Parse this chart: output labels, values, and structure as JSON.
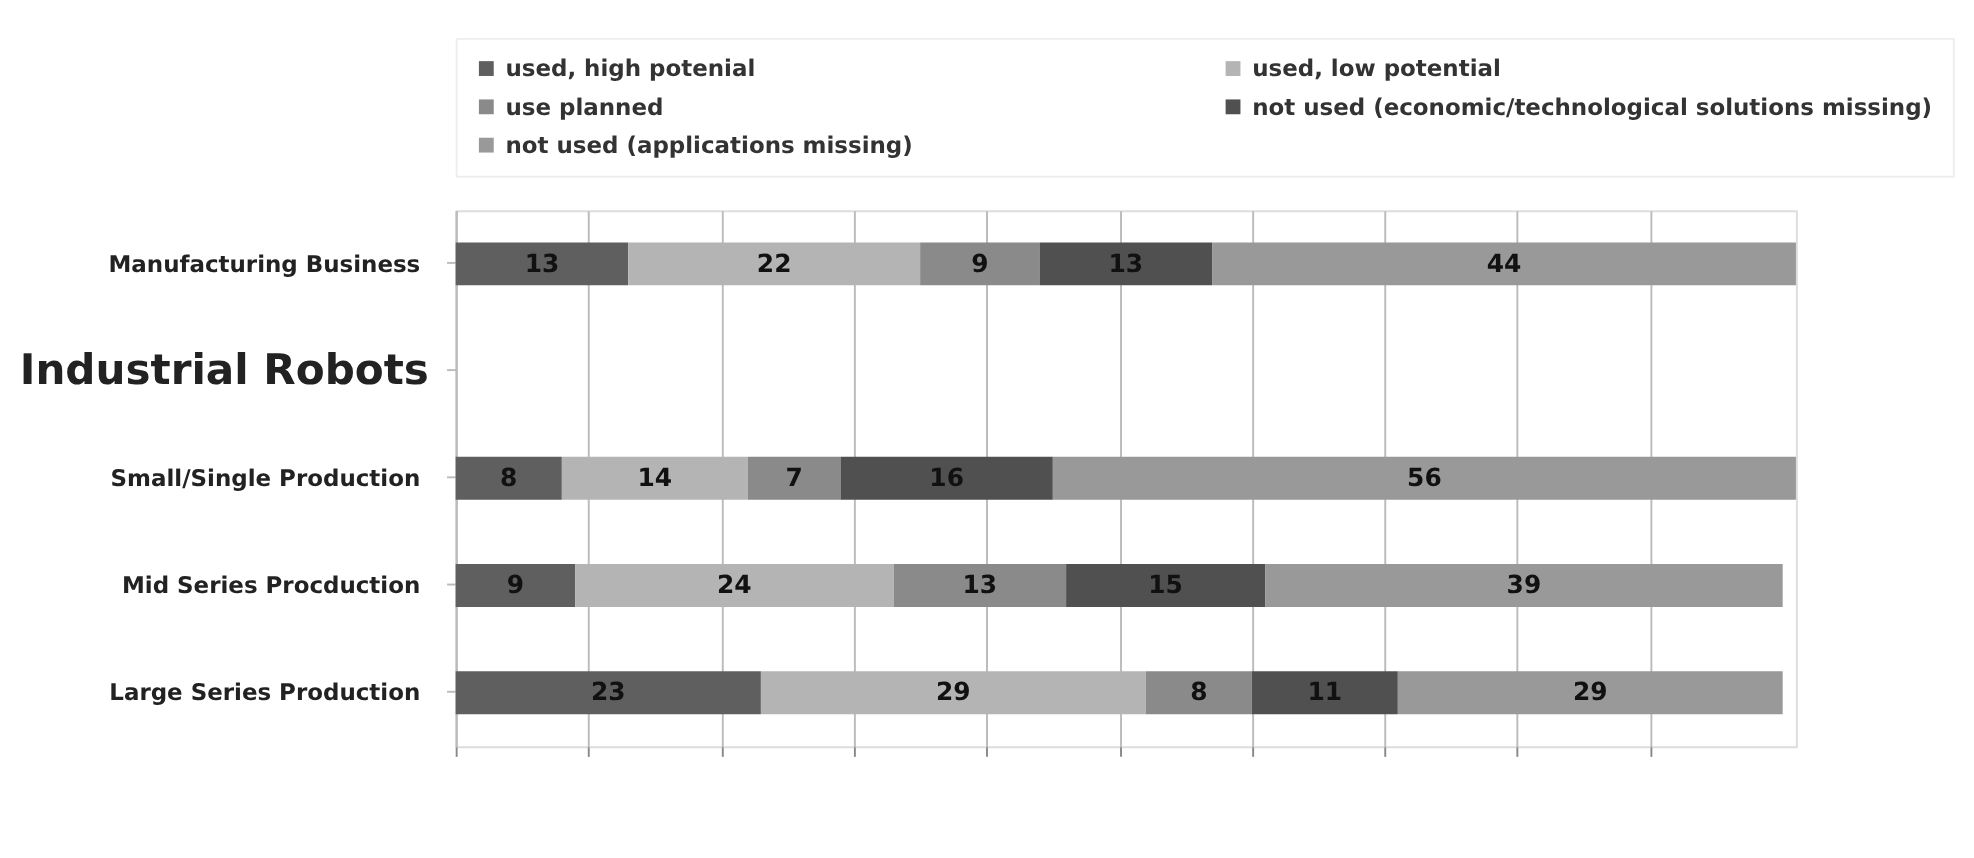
{
  "chart_data": {
    "type": "bar",
    "orientation": "horizontal",
    "stacked": true,
    "data_labels": true,
    "legend": "top",
    "grid": "x",
    "tick_labels": "y",
    "annotations": [
      "Industrial Robots"
    ],
    "categories": [
      "Manufacturing Business",
      null,
      "Small/Single Production",
      "Mid Series Procduction",
      "Large Series Production"
    ],
    "xlim": [
      0,
      101
    ],
    "xticks": [
      {
        "value": 0,
        "label": null
      },
      {
        "value": 10,
        "label": null
      },
      {
        "value": 20,
        "label": null
      },
      {
        "value": 30,
        "label": null
      },
      {
        "value": 40,
        "label": null
      },
      {
        "value": 50,
        "label": null
      },
      {
        "value": 60,
        "label": null
      },
      {
        "value": 70,
        "label": null
      },
      {
        "value": 80,
        "label": null
      },
      {
        "value": 90,
        "label": null
      }
    ],
    "series": [
      {
        "name": "used, high potenial",
        "color": "#5f5f5f",
        "values": [
          13,
          null,
          8,
          9,
          23
        ]
      },
      {
        "name": "used, low potential",
        "color": "#b4b4b4",
        "values": [
          22,
          null,
          14,
          24,
          29
        ]
      },
      {
        "name": "use planned",
        "color": "#8a8a8a",
        "values": [
          9,
          null,
          7,
          13,
          8
        ]
      },
      {
        "name": "not used (economic/technological solutions missing)",
        "color": "#505050",
        "values": [
          13,
          null,
          16,
          15,
          11
        ]
      },
      {
        "name": "not used (applications missing)",
        "color": "#999999",
        "values": [
          44,
          null,
          56,
          39,
          29
        ]
      }
    ]
  }
}
